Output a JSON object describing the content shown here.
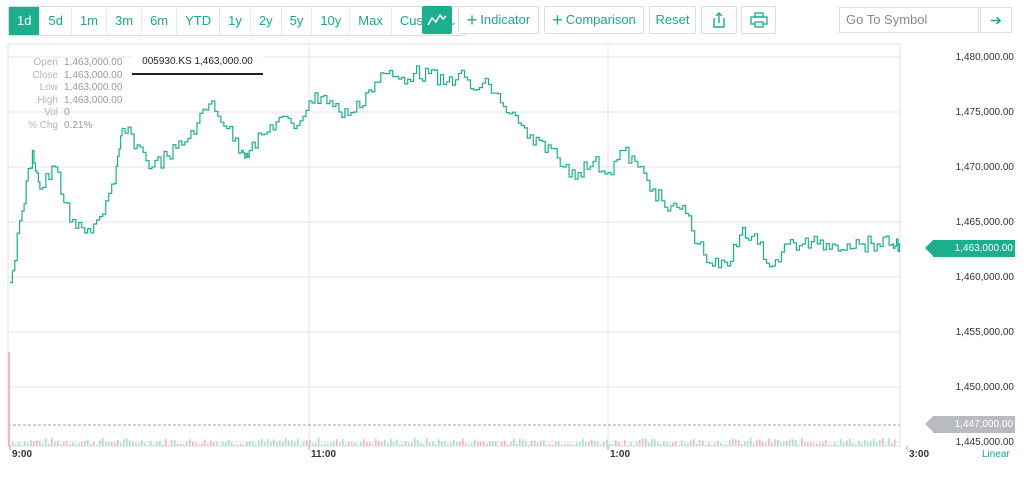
{
  "toolbar": {
    "ranges": [
      "1d",
      "5d",
      "1m",
      "3m",
      "6m",
      "YTD",
      "1y",
      "2y",
      "5y",
      "10y",
      "Max",
      "Custom"
    ],
    "active_range": "1d",
    "chart_type_icon": "line-chart-icon",
    "indicator_label": "Indicator",
    "comparison_label": "Comparison",
    "reset_label": "Reset",
    "share_icon": "share-icon",
    "print_icon": "print-icon",
    "search_placeholder": "Go To Symbol",
    "go_icon": "arrow-right-icon"
  },
  "hud": {
    "open_label": "Open",
    "open": "1,463,000.00",
    "close_label": "Close",
    "close": "1,463,000.00",
    "low_label": "Low",
    "low": "1,463,000.00",
    "high_label": "High",
    "high": "1,463,000.00",
    "vol_label": "Vol",
    "vol": "0",
    "chg_label": "% Chg",
    "chg": "0.21%"
  },
  "tooltip": "005930.KS 1,463,000.00",
  "price_flag": "1,463,000.00",
  "gray_flag": "1,447,000.00",
  "scale_label": "Linear",
  "colors": {
    "line": "#1dae8e",
    "up_volume": "#a8e0d3",
    "down_volume": "#f2b6be",
    "grid": "#e6e6e6"
  },
  "chart_data": {
    "type": "line",
    "symbol": "005930.KS",
    "xlabels": [
      "9:00",
      "11:00",
      "1:00",
      "3:00"
    ],
    "ylim": [
      1445000,
      1480000
    ],
    "yticks": [
      1445000,
      1450000,
      1455000,
      1460000,
      1465000,
      1470000,
      1475000,
      1480000
    ],
    "ytick_labels": [
      "1,445,000.00",
      "1,450,000.00",
      "1,455,000.00",
      "1,460,000.00",
      "1,465,000.00",
      "1,470,000.00",
      "1,475,000.00",
      "1,480,000.00"
    ],
    "x_hours": [
      9,
      9.08,
      9.15,
      9.2,
      9.3,
      9.4,
      9.5,
      9.6,
      9.7,
      9.75,
      9.85,
      9.95,
      10.05,
      10.15,
      10.25,
      10.35,
      10.45,
      10.55,
      10.6,
      10.7,
      10.8,
      10.9,
      11.0,
      11.1,
      11.2,
      11.3,
      11.4,
      11.5,
      11.6,
      11.7,
      11.8,
      11.9,
      12.0,
      12.1,
      12.2,
      12.3,
      12.4,
      12.5,
      12.6,
      12.7,
      12.8,
      12.9,
      13.0,
      13.1,
      13.2,
      13.3,
      13.4,
      13.5,
      13.6,
      13.7,
      13.8,
      13.9,
      14.0,
      14.1,
      14.2,
      14.3,
      14.4,
      14.5,
      14.6,
      14.7,
      14.8,
      14.9,
      14.95
    ],
    "values": [
      1459500,
      1466000,
      1471500,
      1468000,
      1470000,
      1465000,
      1464000,
      1465500,
      1468500,
      1473500,
      1472000,
      1470000,
      1471000,
      1472000,
      1474000,
      1476000,
      1473500,
      1471500,
      1471500,
      1473000,
      1474500,
      1473500,
      1476000,
      1476500,
      1475000,
      1475000,
      1477000,
      1478500,
      1478000,
      1478500,
      1478500,
      1477500,
      1478500,
      1477000,
      1477500,
      1475500,
      1474000,
      1472000,
      1472000,
      1470000,
      1469500,
      1470500,
      1469500,
      1471500,
      1470000,
      1468000,
      1466000,
      1466500,
      1463000,
      1461000,
      1461000,
      1464500,
      1463000,
      1461000,
      1463000,
      1463000,
      1463000,
      1463000,
      1463000,
      1463000,
      1463000,
      1463000,
      1463000
    ],
    "volume_scale_note": ""
  }
}
